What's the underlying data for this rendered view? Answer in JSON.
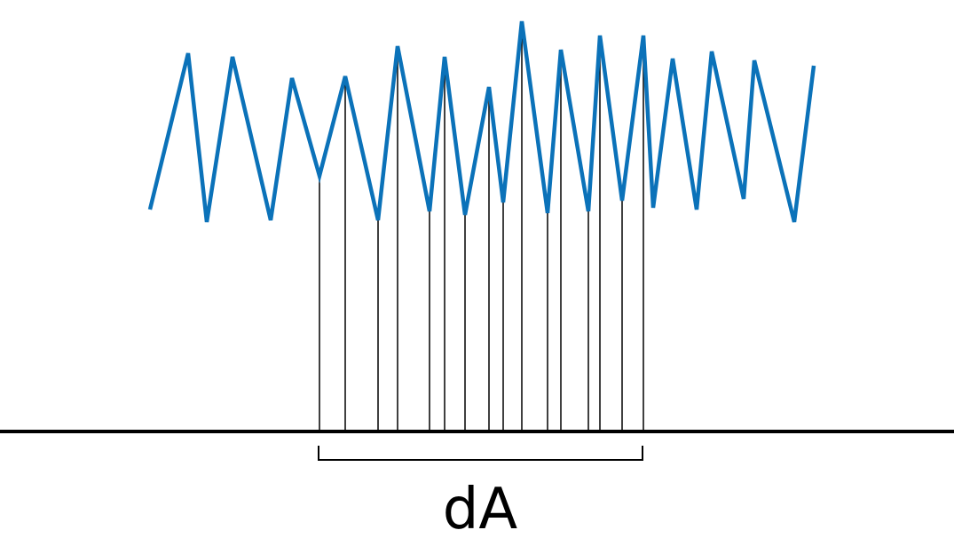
{
  "diagram": {
    "label": "dA",
    "colors": {
      "signal": "#0b72b9",
      "lines": "#000000",
      "background": "#ffffff"
    }
  }
}
